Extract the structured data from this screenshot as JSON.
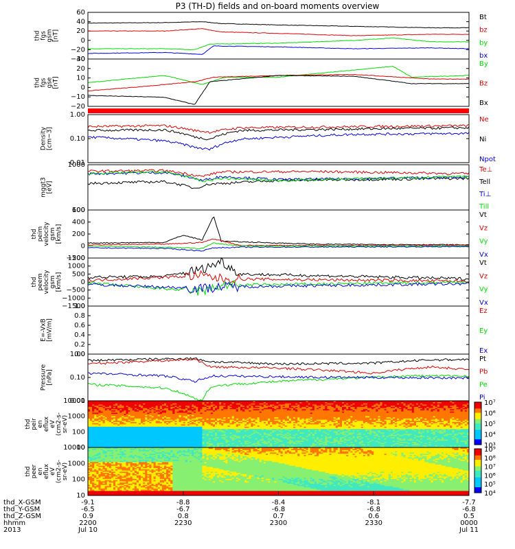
{
  "title": "P3 (TH-D) fields and on-board moments overview",
  "colors": {
    "black": "#000000",
    "red": "#dd0000",
    "green": "#00dd00",
    "blue": "#0000dd",
    "flag": "#ff0000"
  },
  "chart_data": [
    {
      "type": "line",
      "id": "fgs_gsm",
      "ylabel_lines": [
        "thd",
        "fgs",
        "gsm",
        "[nT]"
      ],
      "ylim": [
        -40,
        60
      ],
      "yticks": [
        "60",
        "40",
        "20",
        "0",
        "−20",
        "−40"
      ],
      "series": [
        {
          "name": "Bt",
          "color": "black",
          "points": [
            [
              0,
              37
            ],
            [
              0.2,
              38
            ],
            [
              0.3,
              40
            ],
            [
              0.35,
              36
            ],
            [
              0.5,
              33
            ],
            [
              0.7,
              30
            ],
            [
              0.9,
              27
            ],
            [
              1,
              27
            ]
          ]
        },
        {
          "name": "bz",
          "color": "red",
          "points": [
            [
              0,
              20
            ],
            [
              0.2,
              20
            ],
            [
              0.3,
              25
            ],
            [
              0.35,
              18
            ],
            [
              0.5,
              15
            ],
            [
              0.7,
              10
            ],
            [
              0.9,
              13
            ],
            [
              1,
              13
            ]
          ]
        },
        {
          "name": "by",
          "color": "green",
          "points": [
            [
              0,
              -18
            ],
            [
              0.2,
              -18
            ],
            [
              0.28,
              -20
            ],
            [
              0.32,
              -8
            ],
            [
              0.5,
              -6
            ],
            [
              0.7,
              0
            ],
            [
              0.8,
              5
            ],
            [
              0.9,
              -3
            ],
            [
              1,
              -3
            ]
          ]
        },
        {
          "name": "bx",
          "color": "blue",
          "points": [
            [
              0,
              -28
            ],
            [
              0.2,
              -26
            ],
            [
              0.3,
              -30
            ],
            [
              0.33,
              -12
            ],
            [
              0.5,
              -14
            ],
            [
              0.7,
              -18
            ],
            [
              0.9,
              -16
            ],
            [
              1,
              -18
            ]
          ]
        }
      ]
    },
    {
      "type": "line",
      "id": "fgs_gse",
      "ylabel_lines": [
        "thd",
        "fgs",
        "gse",
        "[nT]"
      ],
      "ylim": [
        -22,
        30
      ],
      "yticks": [
        "30",
        "20",
        "10",
        "0",
        "−10",
        "−20"
      ],
      "series": [
        {
          "name": "By",
          "color": "green",
          "points": [
            [
              0,
              4
            ],
            [
              0.2,
              12
            ],
            [
              0.3,
              2
            ],
            [
              0.36,
              10
            ],
            [
              0.5,
              10
            ],
            [
              0.7,
              18
            ],
            [
              0.8,
              22
            ],
            [
              0.85,
              10
            ],
            [
              1,
              12
            ]
          ]
        },
        {
          "name": "Bz",
          "color": "red",
          "points": [
            [
              0,
              -5
            ],
            [
              0.15,
              0
            ],
            [
              0.28,
              5
            ],
            [
              0.33,
              10
            ],
            [
              0.5,
              12
            ],
            [
              0.7,
              13
            ],
            [
              0.9,
              8
            ],
            [
              1,
              8
            ]
          ]
        },
        {
          "name": "Bx",
          "color": "black",
          "points": [
            [
              0,
              -10
            ],
            [
              0.2,
              -12
            ],
            [
              0.28,
              -20
            ],
            [
              0.32,
              5
            ],
            [
              0.5,
              12
            ],
            [
              0.7,
              11
            ],
            [
              0.85,
              3
            ],
            [
              1,
              3
            ]
          ]
        }
      ]
    },
    {
      "type": "line",
      "id": "density",
      "ylabel_lines": [
        "Density",
        "[cm−3]"
      ],
      "log": true,
      "ylim": [
        0.01,
        1.6
      ],
      "yticks": [
        "1.00",
        "0.10",
        "0.01"
      ],
      "series": [
        {
          "name": "Ne",
          "color": "red",
          "points": [
            [
              0,
              0.45
            ],
            [
              0.2,
              0.5
            ],
            [
              0.28,
              0.3
            ],
            [
              0.32,
              0.25
            ],
            [
              0.4,
              0.4
            ],
            [
              0.7,
              0.45
            ],
            [
              1,
              0.5
            ]
          ]
        },
        {
          "name": "Ni",
          "color": "black",
          "points": [
            [
              0,
              0.3
            ],
            [
              0.2,
              0.32
            ],
            [
              0.28,
              0.15
            ],
            [
              0.32,
              0.12
            ],
            [
              0.4,
              0.3
            ],
            [
              0.7,
              0.35
            ],
            [
              1,
              0.4
            ]
          ]
        },
        {
          "name": "Npot",
          "color": "blue",
          "points": [
            [
              0,
              0.15
            ],
            [
              0.2,
              0.1
            ],
            [
              0.28,
              0.05
            ],
            [
              0.32,
              0.04
            ],
            [
              0.4,
              0.12
            ],
            [
              0.7,
              0.2
            ],
            [
              1,
              0.22
            ]
          ]
        }
      ]
    },
    {
      "type": "line",
      "id": "temperature",
      "ylabel_lines": [
        "mggt3",
        "[eV]"
      ],
      "log": true,
      "ylim": [
        100,
        10000
      ],
      "yticks": [
        "1000",
        "100"
      ],
      "series": [
        {
          "name": "Te⊥",
          "color": "red",
          "points": [
            [
              0,
              5200
            ],
            [
              0.2,
              5500
            ],
            [
              0.3,
              3000
            ],
            [
              0.35,
              4800
            ],
            [
              0.6,
              5000
            ],
            [
              1,
              4000
            ]
          ]
        },
        {
          "name": "Tell",
          "color": "black",
          "points": [
            [
              0,
              1500
            ],
            [
              0.2,
              1800
            ],
            [
              0.28,
              900
            ],
            [
              0.32,
              1400
            ],
            [
              0.5,
              2000
            ],
            [
              1,
              2500
            ]
          ]
        },
        {
          "name": "Ti⊥",
          "color": "blue",
          "points": [
            [
              0,
              4000
            ],
            [
              0.2,
              4500
            ],
            [
              0.3,
              2000
            ],
            [
              0.35,
              3000
            ],
            [
              0.5,
              2200
            ],
            [
              1,
              2800
            ]
          ]
        },
        {
          "name": "Till",
          "color": "green",
          "points": [
            [
              0,
              4200
            ],
            [
              0.2,
              4800
            ],
            [
              0.3,
              1800
            ],
            [
              0.35,
              2500
            ],
            [
              0.5,
              2000
            ],
            [
              1,
              3000
            ]
          ]
        }
      ]
    },
    {
      "type": "line",
      "id": "peim_velocity",
      "ylabel_lines": [
        "thd",
        "peim",
        "velocity",
        "gsm",
        "[km/s]"
      ],
      "ylim": [
        -200,
        600
      ],
      "yticks": [
        "600",
        "400",
        "200",
        "0",
        "−200"
      ],
      "series": [
        {
          "name": "Vt",
          "color": "black",
          "points": [
            [
              0,
              50
            ],
            [
              0.2,
              60
            ],
            [
              0.25,
              180
            ],
            [
              0.3,
              100
            ],
            [
              0.33,
              500
            ],
            [
              0.35,
              80
            ],
            [
              0.6,
              30
            ],
            [
              1,
              20
            ]
          ]
        },
        {
          "name": "Vz",
          "color": "red",
          "points": [
            [
              0,
              20
            ],
            [
              0.2,
              30
            ],
            [
              0.3,
              60
            ],
            [
              0.33,
              120
            ],
            [
              0.4,
              10
            ],
            [
              1,
              10
            ]
          ]
        },
        {
          "name": "Vy",
          "color": "green",
          "points": [
            [
              0,
              0
            ],
            [
              0.2,
              -20
            ],
            [
              0.3,
              -40
            ],
            [
              0.33,
              50
            ],
            [
              0.4,
              0
            ],
            [
              1,
              0
            ]
          ]
        },
        {
          "name": "Vx",
          "color": "blue",
          "points": [
            [
              0,
              -30
            ],
            [
              0.2,
              -40
            ],
            [
              0.3,
              -80
            ],
            [
              0.33,
              -30
            ],
            [
              0.4,
              -20
            ],
            [
              1,
              -10
            ]
          ]
        }
      ]
    },
    {
      "type": "line",
      "id": "peem_velocity",
      "ylabel_lines": [
        "thd",
        "peem",
        "velocity",
        "gsm",
        "[km/s]"
      ],
      "ylim": [
        -1500,
        1500
      ],
      "yticks": [
        "1500",
        "1000",
        "500",
        "0",
        "−500",
        "−1000",
        "−1500"
      ],
      "series": [
        {
          "name": "Vt",
          "color": "black",
          "points": [
            [
              0,
              300
            ],
            [
              0.2,
              350
            ],
            [
              0.3,
              800
            ],
            [
              0.35,
              1300
            ],
            [
              0.4,
              500
            ],
            [
              1,
              200
            ]
          ]
        },
        {
          "name": "Vz",
          "color": "red",
          "points": [
            [
              0,
              100
            ],
            [
              0.3,
              400
            ],
            [
              0.35,
              200
            ],
            [
              1,
              50
            ]
          ]
        },
        {
          "name": "Vy",
          "color": "green",
          "points": [
            [
              0,
              -50
            ],
            [
              0.3,
              -600
            ],
            [
              0.35,
              -200
            ],
            [
              1,
              0
            ]
          ]
        },
        {
          "name": "Vx",
          "color": "blue",
          "points": [
            [
              0,
              -150
            ],
            [
              0.3,
              -400
            ],
            [
              0.35,
              -300
            ],
            [
              1,
              -100
            ]
          ]
        }
      ]
    },
    {
      "type": "line",
      "id": "efield",
      "ylabel_lines": [
        "E=-VxB",
        "[mV/m]"
      ],
      "ylim": [
        0,
        1
      ],
      "yticks": [
        "1.0",
        "0.8",
        "0.6",
        "0.4",
        "0.2",
        "0.0"
      ],
      "series": [
        {
          "name": "Ez",
          "color": "red",
          "points": []
        },
        {
          "name": "Ey",
          "color": "green",
          "points": []
        },
        {
          "name": "Ex",
          "color": "blue",
          "points": []
        }
      ]
    },
    {
      "type": "line",
      "id": "pressure",
      "ylabel_lines": [
        "Pressure",
        "[nPa]"
      ],
      "log": true,
      "ylim": [
        0.01,
        1.6
      ],
      "yticks": [
        "1.00",
        "0.10",
        "0.01"
      ],
      "series": [
        {
          "name": "Pt",
          "color": "black",
          "points": [
            [
              0,
              0.8
            ],
            [
              0.28,
              1.0
            ],
            [
              0.32,
              0.7
            ],
            [
              0.5,
              0.55
            ],
            [
              0.75,
              0.6
            ],
            [
              0.9,
              0.85
            ],
            [
              1,
              0.9
            ]
          ]
        },
        {
          "name": "Pb",
          "color": "red",
          "points": [
            [
              0,
              0.55
            ],
            [
              0.28,
              0.9
            ],
            [
              0.32,
              0.4
            ],
            [
              0.5,
              0.35
            ],
            [
              0.75,
              0.2
            ],
            [
              0.9,
              0.4
            ],
            [
              1,
              0.3
            ]
          ]
        },
        {
          "name": "Pe",
          "color": "green",
          "points": [
            [
              0,
              0.06
            ],
            [
              0.2,
              0.04
            ],
            [
              0.27,
              0.015
            ],
            [
              0.3,
              0.01
            ],
            [
              0.33,
              0.05
            ],
            [
              0.6,
              0.1
            ],
            [
              0.85,
              0.15
            ],
            [
              1,
              0.15
            ]
          ]
        },
        {
          "name": "Pi",
          "color": "blue",
          "points": [
            [
              0,
              0.2
            ],
            [
              0.2,
              0.15
            ],
            [
              0.28,
              0.08
            ],
            [
              0.33,
              0.15
            ],
            [
              0.6,
              0.13
            ],
            [
              1,
              0.12
            ]
          ]
        }
      ]
    },
    {
      "type": "heatmap",
      "id": "peir_eflux",
      "ylabel_lines": [
        "thd",
        "peir",
        "en",
        "eflux",
        "eV",
        "(cm2-s-",
        "sr-eV)"
      ],
      "log": true,
      "ylim": [
        10,
        20000
      ],
      "yticks": [
        "10000",
        "1000",
        "100",
        "10"
      ],
      "colorbar": {
        "min_exp": 3,
        "max_exp": 7,
        "ticks": [
          "10⁷",
          "10⁶",
          "10⁵",
          "10⁴",
          "10³"
        ]
      },
      "description_levels": {
        "low_energy_before_crossing": 3.5,
        "low_energy_after_crossing": 4.5,
        "high_energy": 6.5
      }
    },
    {
      "type": "heatmap",
      "id": "peer_eflux",
      "ylabel_lines": [
        "thd",
        "peer",
        "en",
        "eflux",
        "eV",
        "(cm2-s-",
        "sr-eV)"
      ],
      "log": true,
      "ylim": [
        8,
        20000
      ],
      "yticks": [
        "10000",
        "1000",
        "100",
        "10"
      ],
      "colorbar": {
        "min_exp": 4,
        "max_exp": 9,
        "ticks": [
          "10⁹",
          "10⁸",
          "10⁷",
          "10⁶",
          "10⁵",
          "10⁴"
        ]
      },
      "description_levels": {
        "high_energy": 7.5,
        "mid_energy": 6.5,
        "low_energy": 9
      }
    }
  ],
  "x_axis": {
    "tick_fracs": [
      0,
      0.25,
      0.5,
      0.75,
      1
    ],
    "rows": [
      {
        "label": "thd_X-GSM",
        "values": [
          "-9.1",
          "-8.8",
          "-8.4",
          "-8.1",
          "-7.7"
        ]
      },
      {
        "label": "thd_Y-GSM",
        "values": [
          "-6.5",
          "-6.7",
          "-6.8",
          "-6.8",
          "-6.8"
        ]
      },
      {
        "label": "thd_Z-GSM",
        "values": [
          "0.9",
          "0.8",
          "0.7",
          "0.6",
          "0.5"
        ]
      },
      {
        "label": "hhmm",
        "values": [
          "2200",
          "2230",
          "2300",
          "2330",
          "0000"
        ]
      },
      {
        "label": "2013",
        "values": [
          "Jul 10",
          "",
          "",
          "",
          "Jul 11"
        ]
      }
    ]
  }
}
